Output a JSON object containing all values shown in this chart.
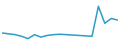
{
  "x": [
    0,
    1,
    2,
    3,
    4,
    5,
    6,
    7,
    8,
    9,
    10,
    11,
    12,
    13,
    14,
    15,
    16,
    17,
    18
  ],
  "y": [
    32,
    31,
    30,
    28,
    25,
    30,
    27,
    29,
    30,
    30.5,
    30,
    29.5,
    29,
    28.5,
    28,
    65,
    44,
    50,
    48
  ],
  "line_color": "#2e9dc8",
  "linewidth": 1.1,
  "background_color": "#ffffff",
  "ylim_min": 20,
  "ylim_max": 70
}
